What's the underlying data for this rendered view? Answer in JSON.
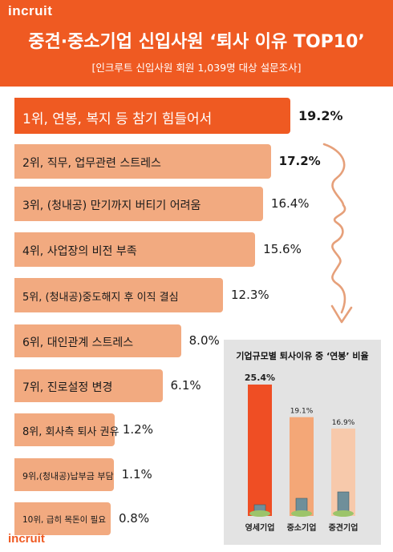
{
  "header": {
    "logo": "incruit",
    "title": "중견·중소기업 신입사원 ‘퇴사 이유 TOP10’",
    "subtitle": "[인크루트 신입사원 회원 1,039명 대상 설문조사]"
  },
  "colors": {
    "brand": "#ef5a22",
    "rank1": "#ef5a22",
    "ranks": "#f2aa80",
    "panel_bg": "#e3e3e3",
    "company_1": "#ef4e24",
    "company_2": "#f4a777",
    "company_3": "#f7c9ab"
  },
  "chart_data": [
    {
      "type": "bar",
      "orientation": "horizontal",
      "title": "중견·중소기업 신입사원 ‘퇴사 이유 TOP10’",
      "categories": [
        "1위, 연봉, 복지 등 참기 힘들어서",
        "2위, 직무, 업무관련 스트레스",
        "3위, (청내공) 만기까지 버티기 어려움",
        "4위, 사업장의 비전 부족",
        "5위, (청내공)중도해지 후 이직 결심",
        "6위, 대인관계 스트레스",
        "7위, 진로설정 변경",
        "8위, 회사측 퇴사 권유",
        "9위,(청내공)납부금 부담",
        "10위, 급히 목돈이 필요"
      ],
      "values": [
        19.2,
        17.2,
        16.4,
        15.6,
        12.3,
        8.0,
        6.1,
        1.2,
        1.1,
        0.8
      ],
      "value_labels": [
        "19.2%",
        "17.2%",
        "16.4%",
        "15.6%",
        "12.3%",
        "8.0%",
        "6.1%",
        "1.2%",
        "1.1%",
        "0.8%"
      ],
      "unit": "%"
    },
    {
      "type": "bar",
      "orientation": "vertical",
      "title": "기업규모별 퇴사이유 중 ‘연봉’ 비율",
      "categories": [
        "영세기업",
        "중소기업",
        "중견기업"
      ],
      "values": [
        25.4,
        19.1,
        16.9
      ],
      "value_labels": [
        "25.4%",
        "19.1%",
        "16.9%"
      ],
      "unit": "%"
    }
  ],
  "footer": {
    "logo": "incruit"
  }
}
